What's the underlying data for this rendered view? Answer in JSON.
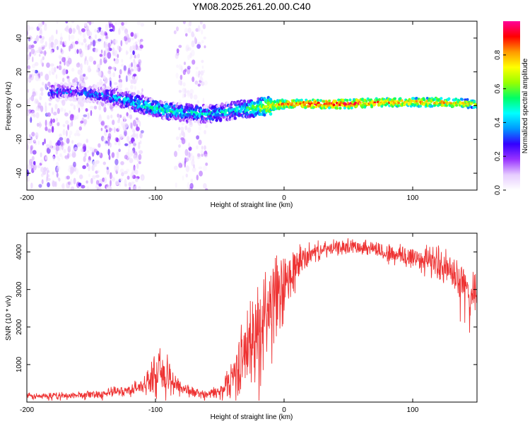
{
  "figure_title": "YM08.2025.261.20.00.C40",
  "chart_data": [
    {
      "type": "heatmap",
      "title": "YM08.2025.261.20.00.C40",
      "xlabel": "Height of straight line (km)",
      "ylabel": "Frequency (Hz)",
      "xlim": [
        -200,
        150
      ],
      "ylim": [
        -50,
        50
      ],
      "xticks": [
        -200,
        -100,
        0,
        100
      ],
      "xtick_labels": [
        "-200",
        "-100",
        "0",
        "100"
      ],
      "yticks": [
        -40,
        -20,
        0,
        20,
        40
      ],
      "ytick_labels": [
        "-40",
        "-20",
        "0",
        "20",
        "40"
      ],
      "grid": false,
      "colorbar": {
        "label": "Normalized spectral amplitude",
        "range": [
          0,
          1
        ],
        "ticks": [
          0.0,
          0.2,
          0.4,
          0.6,
          0.8
        ],
        "tick_labels": [
          "0.0",
          "0.2",
          "0.4",
          "0.6",
          "0.8"
        ],
        "colormap": [
          "#ffffff",
          "#e6ccff",
          "#9933ff",
          "#3300ff",
          "#0099ff",
          "#00ffff",
          "#00ff66",
          "#99ff00",
          "#ffff00",
          "#ff9900",
          "#ff0000",
          "#ff0099"
        ]
      },
      "ridge": {
        "x": [
          -180,
          -160,
          -140,
          -120,
          -100,
          -80,
          -60,
          -40,
          -20,
          -10,
          0,
          20,
          50,
          80,
          100,
          120,
          150
        ],
        "freq": [
          8,
          8,
          6,
          3,
          -2,
          -4,
          -5,
          -3,
          -1,
          0,
          1,
          1,
          1,
          2,
          2,
          2,
          1
        ],
        "amplitude": [
          0.3,
          0.3,
          0.35,
          0.45,
          0.5,
          0.45,
          0.45,
          0.45,
          0.6,
          0.75,
          0.85,
          0.9,
          0.9,
          0.8,
          0.8,
          0.8,
          0.7
        ]
      },
      "noise_bands": [
        {
          "x_range": [
            -200,
            -110
          ],
          "freq_range": [
            -50,
            50
          ],
          "amplitude": 0.2
        },
        {
          "x_range": [
            -85,
            -60
          ],
          "freq_range": [
            -50,
            50
          ],
          "amplitude": 0.15
        }
      ]
    },
    {
      "type": "line",
      "xlabel": "Height of straight line (km)",
      "ylabel": "SNR (10 * v/v)",
      "xlim": [
        -200,
        150
      ],
      "ylim": [
        0,
        4500
      ],
      "xticks": [
        -200,
        -100,
        0,
        100
      ],
      "xtick_labels": [
        "-200",
        "-100",
        "0",
        "100"
      ],
      "yticks": [
        1000,
        2000,
        3000,
        4000
      ],
      "ytick_labels": [
        "1000",
        "2000",
        "3000",
        "4000"
      ],
      "grid": false,
      "series": [
        {
          "name": "SNR",
          "color": "#ee3333",
          "envelope_x": [
            -200,
            -180,
            -160,
            -140,
            -120,
            -110,
            -100,
            -95,
            -90,
            -80,
            -70,
            -60,
            -50,
            -40,
            -30,
            -20,
            -15,
            -10,
            -5,
            0,
            10,
            20,
            30,
            40,
            50,
            60,
            70,
            80,
            90,
            100,
            110,
            120,
            130,
            140,
            150
          ],
          "envelope_y": [
            150,
            160,
            180,
            230,
            320,
            430,
            750,
            800,
            650,
            380,
            250,
            200,
            280,
            700,
            1350,
            1900,
            2400,
            2550,
            2700,
            2950,
            3650,
            3950,
            4050,
            4100,
            4150,
            4150,
            4100,
            3950,
            3900,
            3850,
            3800,
            3700,
            3450,
            3100,
            2800
          ],
          "noise_amplitude": [
            80,
            80,
            90,
            110,
            140,
            200,
            450,
            550,
            450,
            200,
            120,
            100,
            180,
            500,
            900,
            1200,
            1300,
            1300,
            1100,
            900,
            500,
            250,
            200,
            180,
            180,
            180,
            200,
            250,
            300,
            350,
            350,
            400,
            450,
            450,
            450
          ]
        }
      ]
    }
  ]
}
